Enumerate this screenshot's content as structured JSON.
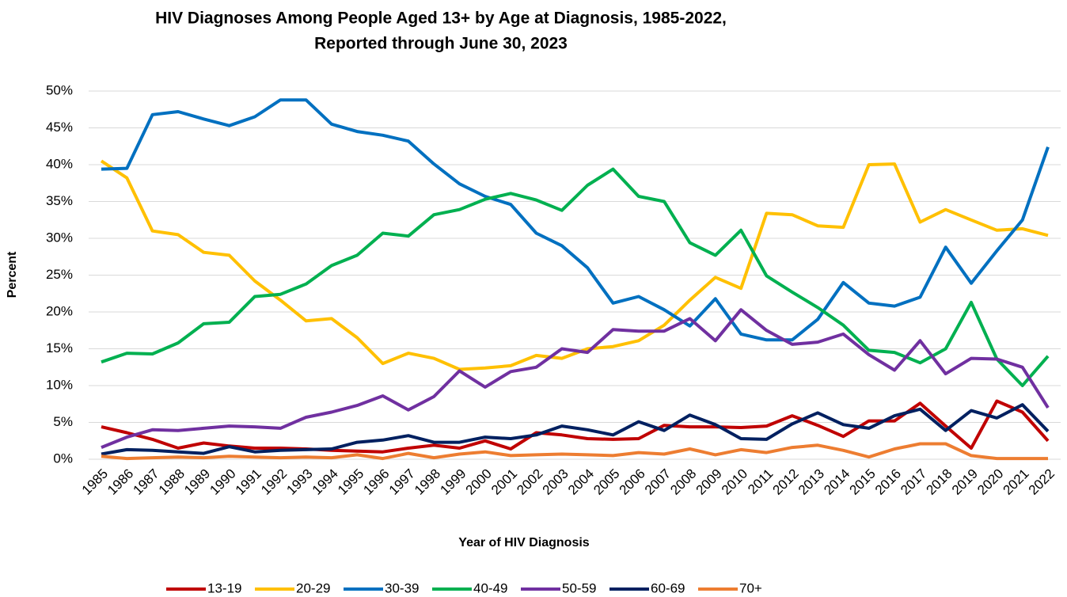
{
  "chart_data": {
    "type": "line",
    "title": [
      "HIV Diagnoses Among People Aged 13+ by Age at Diagnosis, 1985-2022,",
      "Reported through June 30, 2023"
    ],
    "x_label": "Year of HIV Diagnosis",
    "y_label": "Percent",
    "categories": [
      "1985",
      "1986",
      "1987",
      "1988",
      "1989",
      "1990",
      "1991",
      "1992",
      "1993",
      "1994",
      "1995",
      "1996",
      "1997",
      "1998",
      "1999",
      "2000",
      "2001",
      "2002",
      "2003",
      "2004",
      "2005",
      "2006",
      "2007",
      "2008",
      "2009",
      "2010",
      "2011",
      "2012",
      "2013",
      "2014",
      "2015",
      "2016",
      "2017",
      "2018",
      "2019",
      "2020",
      "2021",
      "2022"
    ],
    "ylim": [
      0,
      50
    ],
    "yticks": [
      {
        "value": 0,
        "label": "0%"
      },
      {
        "value": 5,
        "label": "5%"
      },
      {
        "value": 10,
        "label": "10%"
      },
      {
        "value": 15,
        "label": "15%"
      },
      {
        "value": 20,
        "label": "20%"
      },
      {
        "value": 25,
        "label": "25%"
      },
      {
        "value": 30,
        "label": "30%"
      },
      {
        "value": 35,
        "label": "35%"
      },
      {
        "value": 40,
        "label": "40%"
      },
      {
        "value": 45,
        "label": "45%"
      },
      {
        "value": 50,
        "label": "50%"
      }
    ],
    "grid": true,
    "legend": "bottom",
    "series": [
      {
        "name": "13-19",
        "color": "#c00000",
        "values": [
          4.4,
          3.6,
          2.7,
          1.5,
          2.2,
          1.8,
          1.5,
          1.5,
          1.4,
          1.2,
          1.1,
          1.0,
          1.5,
          1.9,
          1.5,
          2.5,
          1.4,
          3.6,
          3.3,
          2.8,
          2.7,
          2.8,
          4.6,
          4.4,
          4.4,
          4.3,
          4.5,
          5.9,
          4.6,
          3.1,
          5.2,
          5.2,
          7.6,
          4.5,
          1.5,
          7.9,
          6.4,
          2.5
        ]
      },
      {
        "name": "20-29",
        "color": "#ffc000",
        "values": [
          40.5,
          38.2,
          31.0,
          30.5,
          28.1,
          27.7,
          24.2,
          21.6,
          18.8,
          19.1,
          16.5,
          13.0,
          14.4,
          13.7,
          12.2,
          12.4,
          12.7,
          14.1,
          13.7,
          15.0,
          15.3,
          16.1,
          18.2,
          21.6,
          24.7,
          23.2,
          33.4,
          33.2,
          31.7,
          31.5,
          40.0,
          40.1,
          32.2,
          33.9,
          32.5,
          31.1,
          31.3,
          30.4
        ]
      },
      {
        "name": "30-39",
        "color": "#0070c0",
        "values": [
          39.4,
          39.5,
          46.8,
          47.2,
          46.2,
          45.3,
          46.5,
          48.8,
          48.8,
          45.5,
          44.5,
          44.0,
          43.2,
          40.1,
          37.4,
          35.7,
          34.6,
          30.7,
          29.0,
          26.0,
          21.2,
          22.1,
          20.3,
          18.1,
          21.8,
          17.0,
          16.2,
          16.2,
          19.0,
          24.0,
          21.2,
          20.8,
          22.0,
          28.8,
          23.9,
          28.3,
          32.5,
          42.4
        ]
      },
      {
        "name": "40-49",
        "color": "#00b050",
        "values": [
          13.2,
          14.4,
          14.3,
          15.8,
          18.4,
          18.6,
          22.1,
          22.4,
          23.8,
          26.3,
          27.7,
          30.7,
          30.3,
          33.2,
          33.9,
          35.3,
          36.1,
          35.2,
          33.8,
          37.2,
          39.4,
          35.7,
          35.0,
          29.4,
          27.7,
          31.1,
          24.9,
          22.7,
          20.6,
          18.2,
          14.8,
          14.5,
          13.1,
          15.0,
          21.3,
          13.6,
          10.0,
          14.0
        ]
      },
      {
        "name": "50-59",
        "color": "#7030a0",
        "values": [
          1.6,
          3.0,
          4.0,
          3.9,
          4.2,
          4.5,
          4.4,
          4.2,
          5.7,
          6.4,
          7.3,
          8.6,
          6.7,
          8.5,
          12.0,
          9.8,
          11.9,
          12.5,
          15.0,
          14.5,
          17.6,
          17.4,
          17.4,
          19.1,
          16.1,
          20.3,
          17.5,
          15.6,
          15.9,
          17.0,
          14.2,
          12.1,
          16.1,
          11.6,
          13.7,
          13.6,
          12.5,
          7.0
        ]
      },
      {
        "name": "60-69",
        "color": "#002060",
        "values": [
          0.7,
          1.3,
          1.2,
          1.0,
          0.8,
          1.7,
          1.0,
          1.2,
          1.3,
          1.4,
          2.3,
          2.6,
          3.2,
          2.3,
          2.3,
          3.0,
          2.8,
          3.3,
          4.5,
          4.0,
          3.3,
          5.1,
          3.9,
          6.0,
          4.7,
          2.8,
          2.7,
          4.8,
          6.3,
          4.7,
          4.2,
          5.9,
          6.8,
          3.9,
          6.6,
          5.6,
          7.4,
          3.8
        ]
      },
      {
        "name": "70+",
        "color": "#ed7d31",
        "values": [
          0.4,
          0.1,
          0.2,
          0.3,
          0.2,
          0.4,
          0.3,
          0.2,
          0.3,
          0.2,
          0.6,
          0.1,
          0.8,
          0.2,
          0.7,
          1.0,
          0.5,
          0.6,
          0.7,
          0.6,
          0.5,
          0.9,
          0.7,
          1.4,
          0.6,
          1.3,
          0.9,
          1.6,
          1.9,
          1.2,
          0.3,
          1.4,
          2.1,
          2.1,
          0.5,
          0.1,
          0.1,
          0.1
        ]
      }
    ]
  }
}
